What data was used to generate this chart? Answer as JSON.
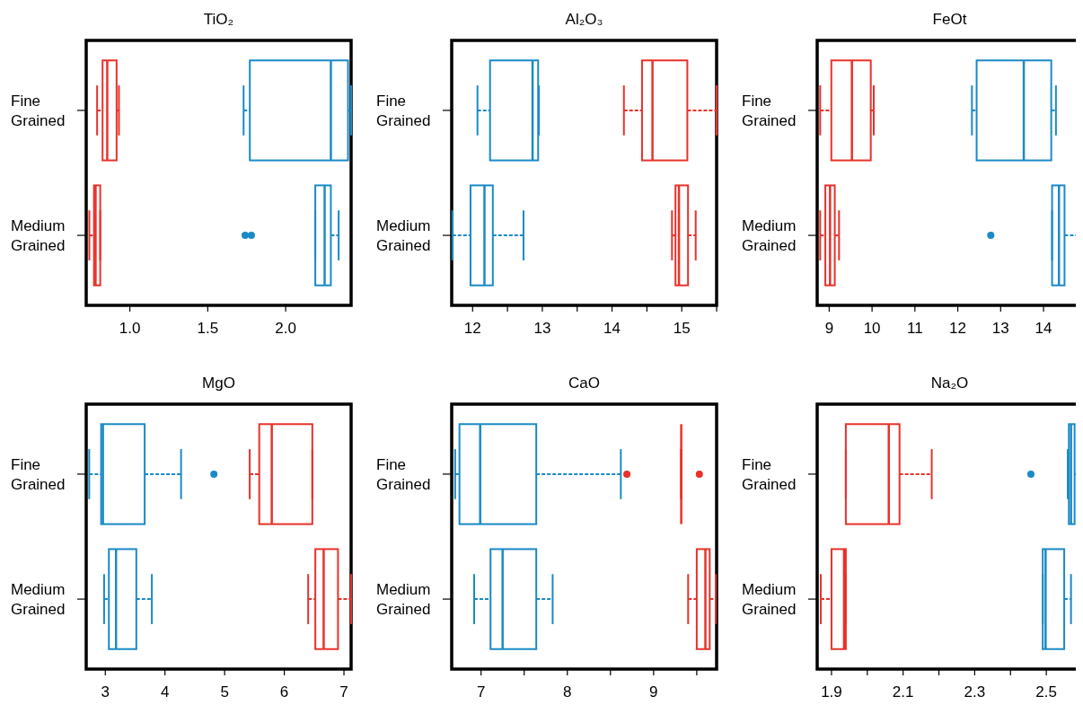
{
  "chart_data": [
    {
      "type": "box",
      "title": "TiO₂",
      "orientation": "horizontal",
      "categories": [
        "Fine Grained",
        "Medium Grained"
      ],
      "xlim": [
        0.72,
        2.42
      ],
      "xticks": [
        {
          "value": 1,
          "label": "1.0"
        },
        1.5,
        {
          "value": 2,
          "label": "2.0"
        }
      ],
      "series": [
        {
          "color": "#e8322a",
          "boxes": [
            {
              "low": 0.79,
              "q1": 0.825,
              "median": 0.855,
              "q3": 0.915,
              "high": 0.93
            },
            {
              "low": 0.74,
              "q1": 0.77,
              "median": 0.78,
              "q3": 0.81,
              "high": 0.81
            }
          ]
        },
        {
          "color": "#1a8ac6",
          "boxes": [
            {
              "low": 1.73,
              "q1": 1.77,
              "median": 2.29,
              "q3": 2.4,
              "high": 2.42
            },
            {
              "low": 2.19,
              "q1": 2.19,
              "median": 2.25,
              "q3": 2.29,
              "high": 2.34,
              "outliers": [
                1.74,
                1.78
              ]
            }
          ]
        }
      ]
    },
    {
      "type": "box",
      "title": "Al₂O₃",
      "orientation": "horizontal",
      "categories": [
        "Fine Grained",
        "Medium Grained"
      ],
      "xlim": [
        11.7,
        15.5
      ],
      "xticks": [
        12,
        {
          "value": 12.5,
          "label": null
        },
        13,
        {
          "value": 13.5,
          "label": null
        },
        14,
        {
          "value": 14.5,
          "label": null
        },
        15,
        {
          "value": 15.5,
          "label": null
        }
      ],
      "series": [
        {
          "color": "#1a8ac6",
          "boxes": [
            {
              "low": 12.07,
              "q1": 12.25,
              "median": 12.86,
              "q3": 12.94,
              "high": 12.95
            },
            {
              "low": 11.71,
              "q1": 11.97,
              "median": 12.17,
              "q3": 12.29,
              "high": 12.73
            }
          ]
        },
        {
          "color": "#e8322a",
          "boxes": [
            {
              "low": 14.17,
              "q1": 14.43,
              "median": 14.58,
              "q3": 15.08,
              "high": 15.5
            },
            {
              "low": 14.86,
              "q1": 14.91,
              "median": 14.96,
              "q3": 15.09,
              "high": 15.2
            }
          ]
        }
      ]
    },
    {
      "type": "box",
      "title": "FeOt",
      "orientation": "horizontal",
      "categories": [
        "Fine Grained",
        "Medium Grained"
      ],
      "xlim": [
        8.72,
        14.9
      ],
      "xticks": [
        9,
        10,
        11,
        12,
        13,
        14
      ],
      "series": [
        {
          "color": "#e8322a",
          "boxes": [
            {
              "low": 8.79,
              "q1": 9.05,
              "median": 9.53,
              "q3": 9.97,
              "high": 10.04
            },
            {
              "low": 8.79,
              "q1": 8.91,
              "median": 9.02,
              "q3": 9.13,
              "high": 9.23
            }
          ]
        },
        {
          "color": "#1a8ac6",
          "boxes": [
            {
              "low": 12.33,
              "q1": 12.44,
              "median": 13.54,
              "q3": 14.18,
              "high": 14.29
            },
            {
              "low": 14.2,
              "q1": 14.2,
              "median": 14.36,
              "q3": 14.49,
              "high": 14.89,
              "outliers": [
                12.77
              ]
            }
          ]
        }
      ]
    },
    {
      "type": "box",
      "title": "MgO",
      "orientation": "horizontal",
      "categories": [
        "Fine Grained",
        "Medium Grained"
      ],
      "xlim": [
        2.68,
        7.12
      ],
      "xticks": [
        3,
        4,
        5,
        6,
        7
      ],
      "series": [
        {
          "color": "#1a8ac6",
          "boxes": [
            {
              "low": 2.73,
              "q1": 2.93,
              "median": 2.96,
              "q3": 3.66,
              "high": 4.27,
              "outliers": [
                4.82
              ]
            },
            {
              "low": 2.98,
              "q1": 3.06,
              "median": 3.18,
              "q3": 3.52,
              "high": 3.78
            }
          ]
        },
        {
          "color": "#e8322a",
          "boxes": [
            {
              "low": 5.42,
              "q1": 5.58,
              "median": 5.79,
              "q3": 6.47,
              "high": 6.47
            },
            {
              "low": 6.4,
              "q1": 6.52,
              "median": 6.66,
              "q3": 6.9,
              "high": 7.12
            }
          ]
        }
      ]
    },
    {
      "type": "box",
      "title": "CaO",
      "orientation": "horizontal",
      "categories": [
        "Fine Grained",
        "Medium Grained"
      ],
      "xlim": [
        6.66,
        9.73
      ],
      "xticks": [
        7,
        {
          "value": 7.5,
          "label": null
        },
        8,
        {
          "value": 8.5,
          "label": null
        },
        9,
        {
          "value": 9.5,
          "label": null
        }
      ],
      "series": [
        {
          "color": "#1a8ac6",
          "boxes": [
            {
              "low": 6.7,
              "q1": 6.75,
              "median": 6.99,
              "q3": 7.64,
              "high": 8.62
            },
            {
              "low": 6.92,
              "q1": 7.11,
              "median": 7.25,
              "q3": 7.64,
              "high": 7.83
            }
          ]
        },
        {
          "color": "#e8322a",
          "boxes": [
            {
              "low": 9.32,
              "q1": 9.32,
              "median": 9.32,
              "q3": 9.32,
              "high": 9.32,
              "outliers": [
                8.69,
                9.53
              ]
            },
            {
              "low": 9.4,
              "q1": 9.5,
              "median": 9.6,
              "q3": 9.65,
              "high": 9.72
            }
          ]
        }
      ]
    },
    {
      "type": "box",
      "title": "Na₂O",
      "orientation": "horizontal",
      "categories": [
        "Fine Grained",
        "Medium Grained"
      ],
      "xlim": [
        1.86,
        2.6
      ],
      "xticks": [
        1.9,
        {
          "value": 2.0,
          "label": null
        },
        2.1,
        {
          "value": 2.2,
          "label": null
        },
        2.3,
        {
          "value": 2.4,
          "label": null
        },
        2.5,
        {
          "value": 2.6,
          "label": null
        }
      ],
      "series": [
        {
          "color": "#e8322a",
          "boxes": [
            {
              "low": 1.94,
              "q1": 1.94,
              "median": 2.06,
              "q3": 2.09,
              "high": 2.18
            },
            {
              "low": 1.87,
              "q1": 1.9,
              "median": 1.935,
              "q3": 1.94,
              "high": 1.94
            }
          ]
        },
        {
          "color": "#1a8ac6",
          "boxes": [
            {
              "low": 2.56,
              "q1": 2.563,
              "median": 2.569,
              "q3": 2.579,
              "high": 2.6,
              "outliers": [
                2.457
              ]
            },
            {
              "low": 2.49,
              "q1": 2.49,
              "median": 2.498,
              "q3": 2.55,
              "high": 2.569
            }
          ]
        }
      ]
    }
  ]
}
